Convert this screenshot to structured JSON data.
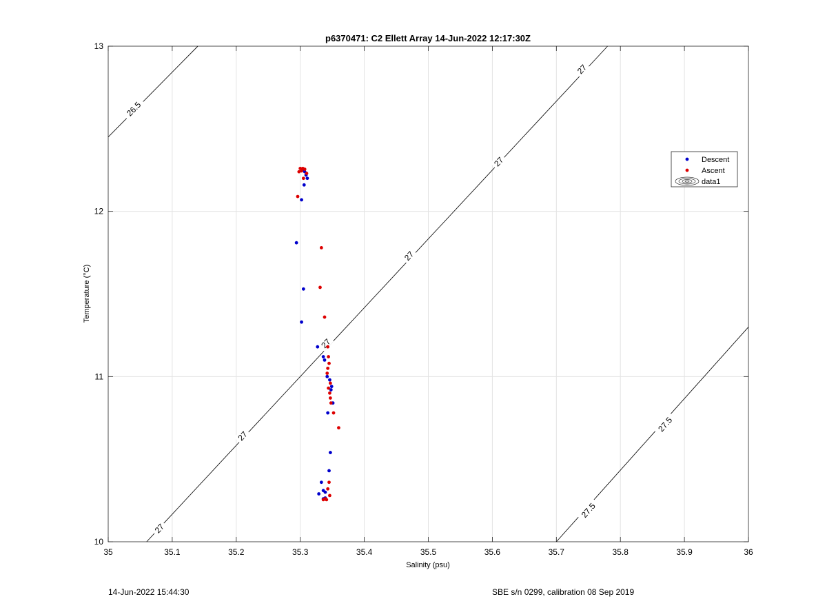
{
  "chart_data": {
    "type": "scatter",
    "title": "p6370471: C2 Ellett Array 14-Jun-2022 12:17:30Z",
    "xlabel": "Salinity (psu)",
    "ylabel": "Temperature (°C)",
    "xlim": [
      35,
      36
    ],
    "ylim": [
      10,
      13
    ],
    "xticks": [
      "35",
      "35.1",
      "35.2",
      "35.3",
      "35.4",
      "35.5",
      "35.6",
      "35.7",
      "35.8",
      "35.9",
      "36"
    ],
    "yticks": [
      "10",
      "11",
      "12",
      "13"
    ],
    "grid": true,
    "legend": {
      "placement": "right",
      "entries": [
        "Descent",
        "Ascent",
        "data1"
      ]
    },
    "series": [
      {
        "name": "Descent",
        "color": "#0000cc",
        "points": [
          [
            35.305,
            12.255
          ],
          [
            35.307,
            12.24
          ],
          [
            35.309,
            12.22
          ],
          [
            35.311,
            12.2
          ],
          [
            35.306,
            12.16
          ],
          [
            35.302,
            12.07
          ],
          [
            35.294,
            11.81
          ],
          [
            35.305,
            11.53
          ],
          [
            35.302,
            11.33
          ],
          [
            35.327,
            11.18
          ],
          [
            35.336,
            11.12
          ],
          [
            35.338,
            11.1
          ],
          [
            35.342,
            11.0
          ],
          [
            35.346,
            10.98
          ],
          [
            35.349,
            10.94
          ],
          [
            35.348,
            10.92
          ],
          [
            35.351,
            10.84
          ],
          [
            35.343,
            10.78
          ],
          [
            35.347,
            10.54
          ],
          [
            35.345,
            10.43
          ],
          [
            35.333,
            10.36
          ],
          [
            35.336,
            10.31
          ],
          [
            35.339,
            10.3
          ],
          [
            35.329,
            10.29
          ],
          [
            35.336,
            10.26
          ],
          [
            35.339,
            10.265
          ]
        ]
      },
      {
        "name": "Ascent",
        "color": "#dd0000",
        "points": [
          [
            35.3,
            12.26
          ],
          [
            35.304,
            12.26
          ],
          [
            35.307,
            12.255
          ],
          [
            35.302,
            12.245
          ],
          [
            35.298,
            12.24
          ],
          [
            35.31,
            12.23
          ],
          [
            35.305,
            12.2
          ],
          [
            35.296,
            12.09
          ],
          [
            35.333,
            11.78
          ],
          [
            35.331,
            11.54
          ],
          [
            35.338,
            11.36
          ],
          [
            35.343,
            11.18
          ],
          [
            35.344,
            11.12
          ],
          [
            35.345,
            11.08
          ],
          [
            35.343,
            11.05
          ],
          [
            35.342,
            11.02
          ],
          [
            35.347,
            10.96
          ],
          [
            35.344,
            10.93
          ],
          [
            35.346,
            10.9
          ],
          [
            35.347,
            10.87
          ],
          [
            35.348,
            10.84
          ],
          [
            35.352,
            10.78
          ],
          [
            35.36,
            10.69
          ],
          [
            35.345,
            10.36
          ],
          [
            35.343,
            10.32
          ],
          [
            35.346,
            10.28
          ],
          [
            35.339,
            10.26
          ],
          [
            35.336,
            10.255
          ],
          [
            35.341,
            10.255
          ]
        ]
      }
    ],
    "contours": [
      {
        "level": "26.5",
        "from": [
          35.0,
          12.45
        ],
        "to": [
          35.14,
          13.0
        ],
        "labels": [
          [
            35.04,
            12.62
          ]
        ]
      },
      {
        "level": "27",
        "from": [
          35.06,
          10.0
        ],
        "to": [
          35.78,
          13.0
        ],
        "labels": [
          [
            35.08,
            10.08
          ],
          [
            35.21,
            10.64
          ],
          [
            35.34,
            11.2
          ],
          [
            35.47,
            11.73
          ],
          [
            35.61,
            12.3
          ],
          [
            35.74,
            12.86
          ]
        ]
      },
      {
        "level": "27.5",
        "from": [
          35.7,
          10.0
        ],
        "to": [
          36.0,
          11.3
        ],
        "labels": [
          [
            35.75,
            10.19
          ],
          [
            35.87,
            10.71
          ]
        ]
      }
    ]
  },
  "footer": {
    "timestamp": "14-Jun-2022 15:44:30",
    "calibration": "SBE s/n 0299, calibration 08 Sep 2019"
  }
}
